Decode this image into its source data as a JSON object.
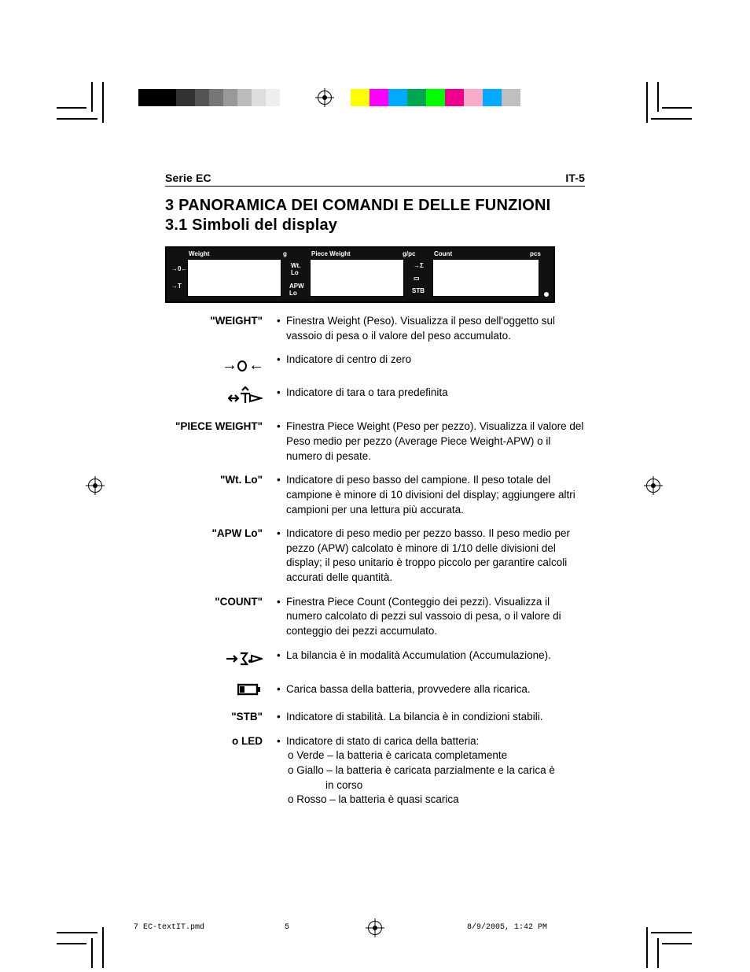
{
  "crop_color": "#000000",
  "reg": {
    "grays": [
      "#000000",
      "#000000",
      "#333333",
      "#555555",
      "#777777",
      "#999999",
      "#bbbbbb",
      "#dddddd",
      "#eeeeee"
    ],
    "gray_widths": [
      24,
      24,
      24,
      18,
      18,
      18,
      18,
      18,
      18
    ],
    "colors": [
      "#ffff00",
      "#ff00ff",
      "#00aaff",
      "#00a651",
      "#00ff00",
      "#ec008c",
      "#f7adc9",
      "#00aaff",
      "#bfbfbf"
    ],
    "color_widths": [
      24,
      24,
      24,
      24,
      24,
      24,
      24,
      24,
      24
    ]
  },
  "header": {
    "left": "Serie EC",
    "right": "IT-5"
  },
  "title_line1": "3 PANORAMICA DEI COMANDI E DELLE FUNZIONI",
  "title_line2": "3.1 Simboli del display",
  "panel": {
    "bg": "#111111",
    "window_bg": "#ffffff",
    "labels": {
      "weight": "Weight",
      "piece": "Piece Weight",
      "count": "Count"
    },
    "units": {
      "g": "g",
      "gpc": "g/pc",
      "pcs": "pcs"
    },
    "side_left_top": "→0←",
    "side_left_bot": "→T",
    "side_mid_top": "Wt.\nLo",
    "side_mid_bot": "APW\nLo",
    "side_right_top": "→Σ",
    "side_right_mid": "▭",
    "side_right_bot": "STB"
  },
  "rows": [
    {
      "term": "\"WEIGHT\"",
      "icon": null,
      "lines": [
        "Finestra Weight (Peso). Visualizza il peso dell'oggetto sul vassoio di pesa o il valore del peso accumulato."
      ]
    },
    {
      "term": "",
      "icon": "zero",
      "lines": [
        "Indicatore di centro di zero"
      ]
    },
    {
      "term": "",
      "icon": "tare",
      "lines": [
        "Indicatore di tara o tara predefinita"
      ]
    },
    {
      "term": "\"PIECE WEIGHT\"",
      "icon": null,
      "lines": [
        "Finestra Piece Weight (Peso per pezzo). Visualizza il valore del Peso medio per pezzo (Average Piece Weight-APW) o il numero di pesate."
      ]
    },
    {
      "term": "\"Wt. Lo\"",
      "icon": null,
      "lines": [
        "Indicatore di peso basso del campione. Il peso totale del campione è minore di 10 divisioni del display; aggiungere altri campioni per una lettura più accurata."
      ]
    },
    {
      "term": "\"APW Lo\"",
      "icon": null,
      "lines": [
        "Indicatore di peso medio per pezzo basso. Il peso medio per pezzo (APW) calcolato è minore di 1/10 delle divisioni del display; il peso unitario è troppo piccolo per garantire calcoli accurati delle quantità."
      ]
    },
    {
      "term": "\"COUNT\"",
      "icon": null,
      "lines": [
        "Finestra Piece Count (Conteggio dei pezzi). Visualizza il numero calcolato di pezzi sul vassoio di pesa, o il valore di conteggio dei pezzi accumulato."
      ]
    },
    {
      "term": "",
      "icon": "sigma",
      "lines": [
        "La bilancia è in modalità Accumulation (Accumulazione)."
      ]
    },
    {
      "term": "",
      "icon": "batt",
      "lines": [
        "Carica bassa della batteria, provvedere alla ricarica."
      ]
    },
    {
      "term": "\"STB\"",
      "icon": null,
      "lines": [
        "Indicatore di stabilità. La bilancia è in condizioni stabili."
      ]
    },
    {
      "term": "o LED",
      "icon": null,
      "lines": [
        "Indicatore di stato di carica della batteria:"
      ],
      "subs": [
        "o Verde – la batteria è caricata completamente",
        "o Giallo – la batteria è caricata parzialmente e la carica è",
        "   in corso",
        "o Rosso – la batteria è quasi scarica"
      ]
    }
  ],
  "footer": {
    "file": "7 EC-textIT.pmd",
    "page": "5",
    "datetime": "8/9/2005, 1:42 PM"
  }
}
